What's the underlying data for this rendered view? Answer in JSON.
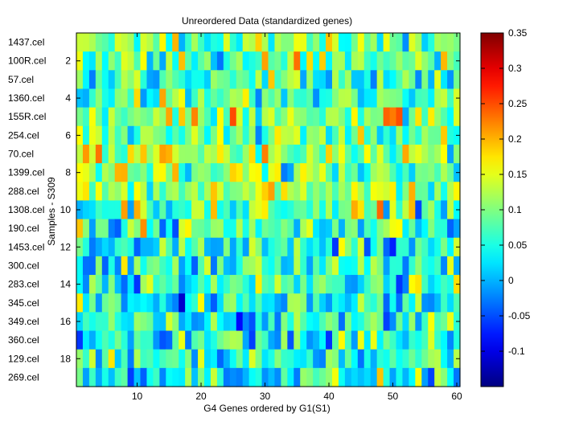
{
  "chart_data": {
    "type": "heatmap",
    "title": "Unreordered Data (standardized genes)",
    "xlabel": "G4 Genes ordered by G1(S1)",
    "ylabel": "Samples - S309",
    "x_ticks": [
      10,
      20,
      30,
      40,
      50,
      60
    ],
    "y_ticks": [
      2,
      4,
      6,
      8,
      10,
      12,
      14,
      16,
      18
    ],
    "row_labels": [
      "1437.cel",
      "100R.cel",
      "57.cel",
      "1360.cel",
      "155R.cel",
      "254.cel",
      "70.cel",
      "1399.cel",
      "288.cel",
      "1308.cel",
      "190.cel",
      "1453.cel",
      "300.cel",
      "283.cel",
      "345.cel",
      "349.cel",
      "360.cel",
      "129.cel",
      "269.cel"
    ],
    "n_rows": 19,
    "n_cols": 60,
    "row_means": [
      0.11,
      0.09,
      0.08,
      0.08,
      0.11,
      0.1,
      0.12,
      0.1,
      0.11,
      0.09,
      0.07,
      0.04,
      0.05,
      0.06,
      0.04,
      0.05,
      0.05,
      0.06,
      0.05
    ],
    "value_range": [
      -0.15,
      0.35
    ],
    "colorbar": {
      "ticks": [
        0.35,
        0.3,
        0.25,
        0.2,
        0.15,
        0.1,
        0.05,
        0,
        -0.05,
        -0.1
      ],
      "tick_labels": [
        "0.35",
        "0.3",
        "0.25",
        "0.2",
        "0.15",
        "0.1",
        "0.05",
        "0",
        "-0.05",
        "-0.1"
      ],
      "colormap": "jet"
    }
  }
}
